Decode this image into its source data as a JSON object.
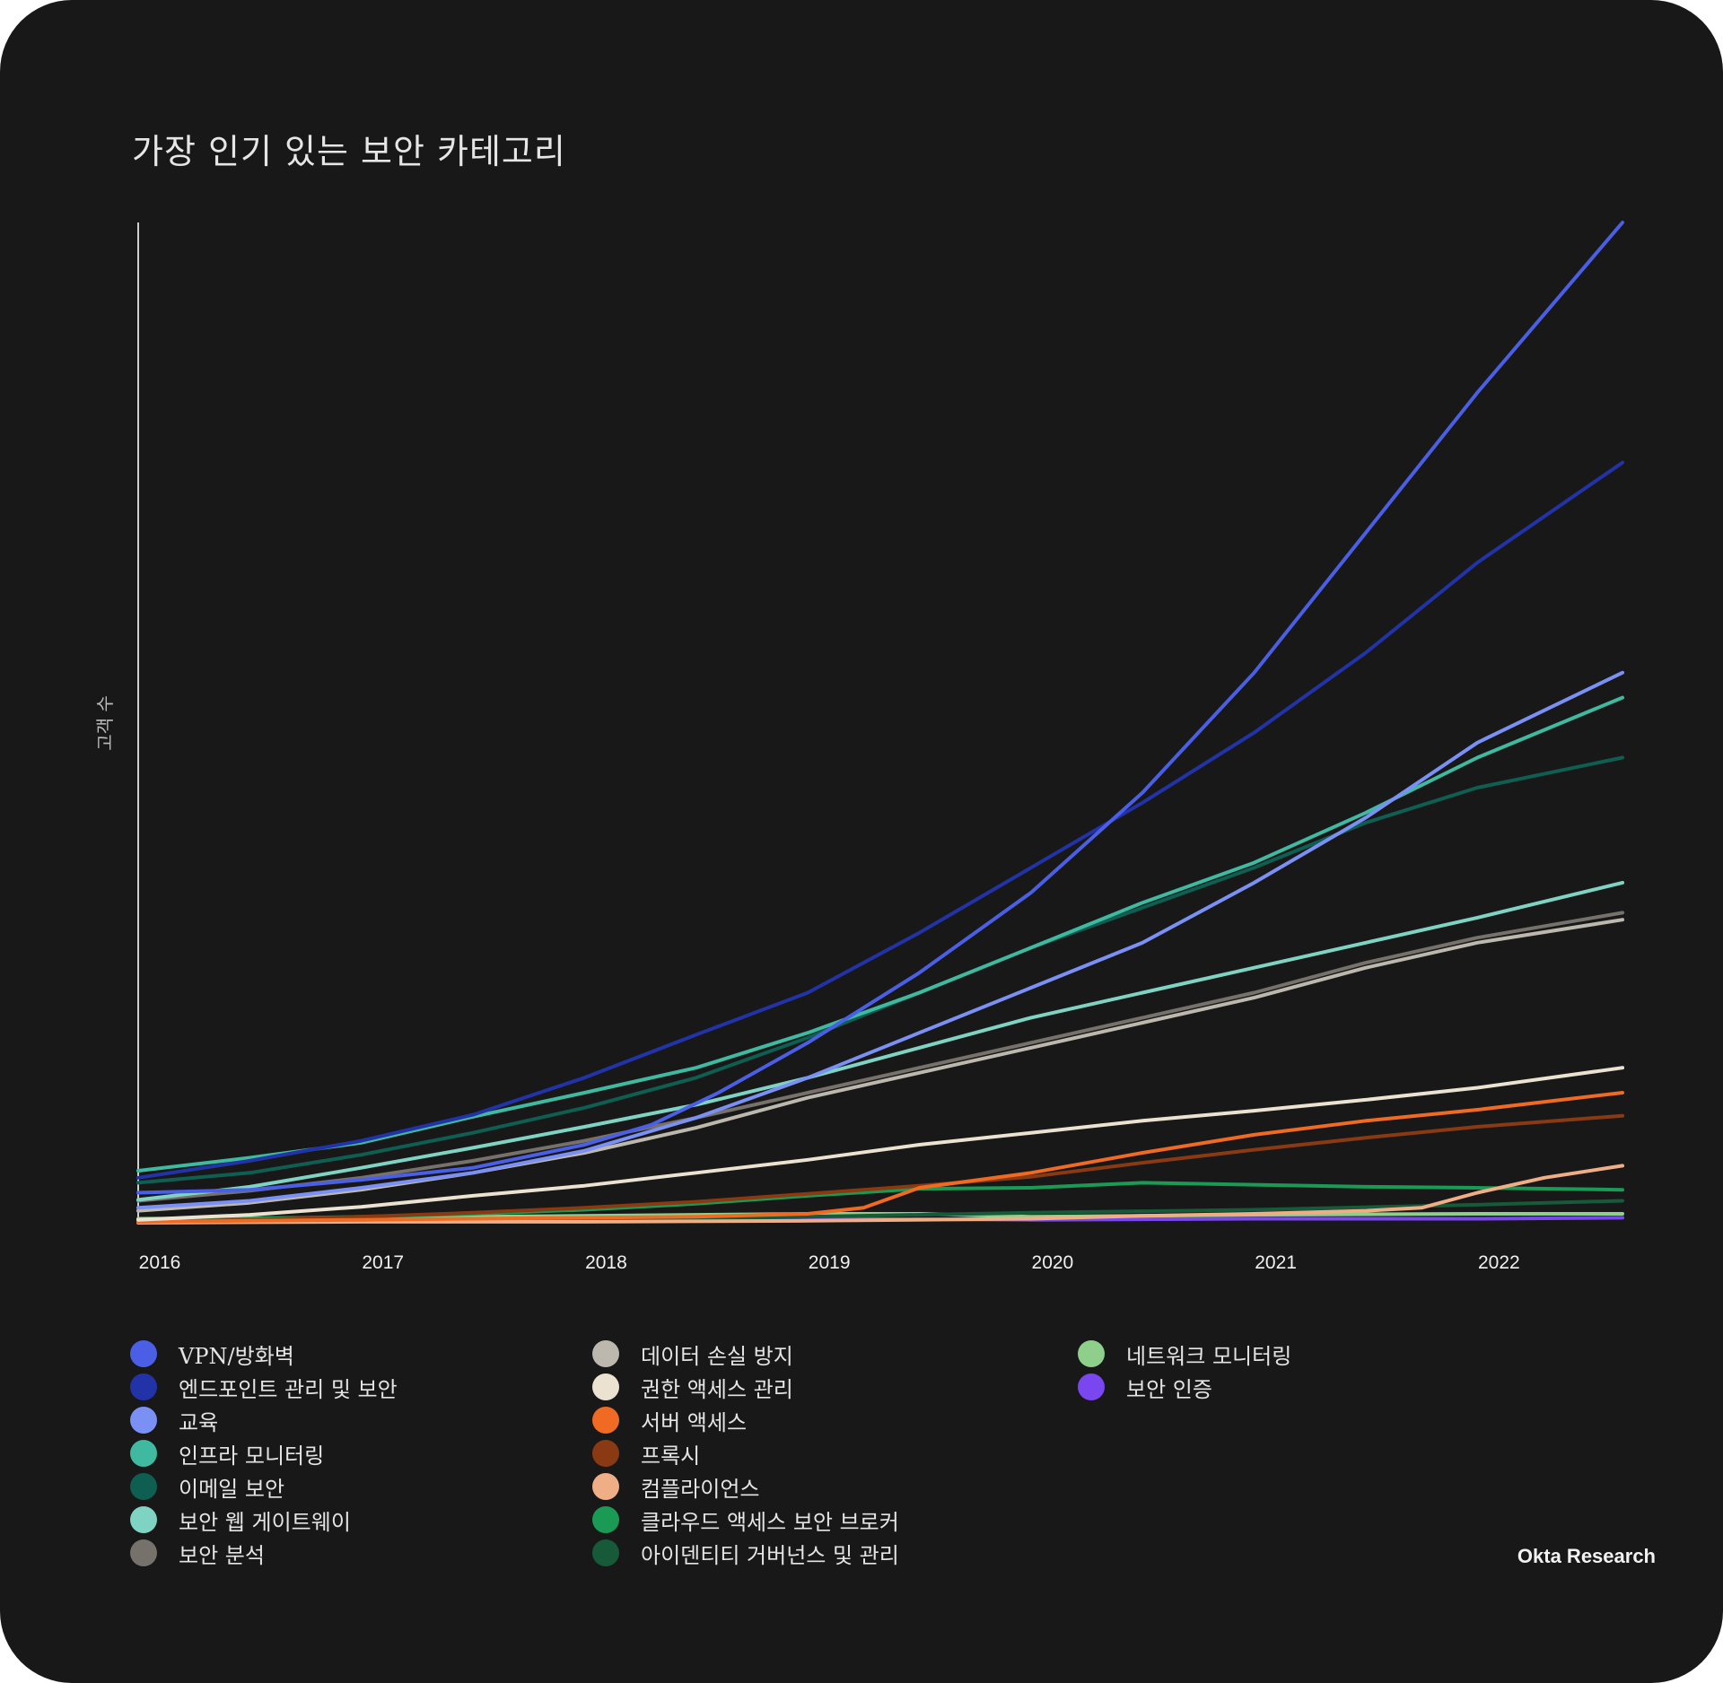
{
  "title": "가장 인기 있는 보안 카테고리",
  "source": "Okta Research",
  "chart_data": {
    "type": "line",
    "title": "가장 인기 있는 보안 카테고리",
    "xlabel": "",
    "ylabel": "고객 수",
    "x_ticks": [
      "2016",
      "2017",
      "2018",
      "2019",
      "2020",
      "2021",
      "2022"
    ],
    "xlim": [
      2016,
      2022.65
    ],
    "ylim": [
      0,
      100
    ],
    "grid": false,
    "legend_position": "bottom",
    "series": [
      {
        "name": "VPN/방화벽",
        "color": "#4a5fe6",
        "width": 4,
        "points": [
          [
            2016,
            3
          ],
          [
            2016.5,
            3.3
          ],
          [
            2017,
            4.3
          ],
          [
            2017.5,
            5.5
          ],
          [
            2018,
            7.8
          ],
          [
            2018.3,
            9.8
          ],
          [
            2018.6,
            13
          ],
          [
            2019,
            18
          ],
          [
            2019.5,
            25
          ],
          [
            2020,
            33
          ],
          [
            2020.5,
            43
          ],
          [
            2021,
            55
          ],
          [
            2021.5,
            69
          ],
          [
            2022,
            83
          ],
          [
            2022.65,
            100
          ]
        ]
      },
      {
        "name": "엔드포인트 관리 및 보안",
        "color": "#2233a8",
        "width": 4,
        "points": [
          [
            2016,
            4.5
          ],
          [
            2016.5,
            6.2
          ],
          [
            2017,
            8.2
          ],
          [
            2017.5,
            10.8
          ],
          [
            2018,
            14.5
          ],
          [
            2018.5,
            18.8
          ],
          [
            2019,
            23
          ],
          [
            2019.5,
            29
          ],
          [
            2020,
            35.5
          ],
          [
            2020.5,
            42
          ],
          [
            2021,
            49
          ],
          [
            2021.5,
            57
          ],
          [
            2022,
            66
          ],
          [
            2022.65,
            76
          ]
        ]
      },
      {
        "name": "교육",
        "color": "#7b90f5",
        "width": 4,
        "points": [
          [
            2016,
            1.5
          ],
          [
            2016.5,
            2.2
          ],
          [
            2017,
            3.5
          ],
          [
            2017.5,
            5
          ],
          [
            2018,
            7.2
          ],
          [
            2018.5,
            10.5
          ],
          [
            2019,
            14.5
          ],
          [
            2019.5,
            19
          ],
          [
            2020,
            23.5
          ],
          [
            2020.5,
            28
          ],
          [
            2021,
            34
          ],
          [
            2021.5,
            40.5
          ],
          [
            2022,
            48
          ],
          [
            2022.65,
            55
          ]
        ]
      },
      {
        "name": "인프라 모니터링",
        "color": "#3fb9a0",
        "width": 4,
        "points": [
          [
            2016,
            5.2
          ],
          [
            2016.5,
            6.5
          ],
          [
            2017,
            8
          ],
          [
            2017.5,
            10.6
          ],
          [
            2018,
            13
          ],
          [
            2018.5,
            15.5
          ],
          [
            2019,
            19
          ],
          [
            2019.5,
            23
          ],
          [
            2020,
            27.5
          ],
          [
            2020.5,
            32
          ],
          [
            2021,
            36
          ],
          [
            2021.5,
            41
          ],
          [
            2022,
            46.5
          ],
          [
            2022.65,
            52.5
          ]
        ]
      },
      {
        "name": "이메일 보안",
        "color": "#0e5e52",
        "width": 4,
        "points": [
          [
            2016,
            4
          ],
          [
            2016.5,
            5
          ],
          [
            2017,
            6.8
          ],
          [
            2017.5,
            9
          ],
          [
            2018,
            11.5
          ],
          [
            2018.5,
            14.5
          ],
          [
            2019,
            18.5
          ],
          [
            2019.5,
            23
          ],
          [
            2020,
            27.5
          ],
          [
            2020.5,
            31.5
          ],
          [
            2021,
            35.5
          ],
          [
            2021.5,
            40
          ],
          [
            2022,
            43.5
          ],
          [
            2022.65,
            46.5
          ]
        ]
      },
      {
        "name": "보안 웹 게이트웨이",
        "color": "#7fd3c3",
        "width": 4,
        "points": [
          [
            2016,
            2.3
          ],
          [
            2016.5,
            3.6
          ],
          [
            2017,
            5.5
          ],
          [
            2017.5,
            7.5
          ],
          [
            2018,
            9.6
          ],
          [
            2018.5,
            11.8
          ],
          [
            2019,
            14.5
          ],
          [
            2019.5,
            17.5
          ],
          [
            2020,
            20.5
          ],
          [
            2020.5,
            23
          ],
          [
            2021,
            25.5
          ],
          [
            2021.5,
            28
          ],
          [
            2022,
            30.5
          ],
          [
            2022.65,
            34
          ]
        ]
      },
      {
        "name": "보안 분석",
        "color": "#76716a",
        "width": 4,
        "points": [
          [
            2016,
            2.2
          ],
          [
            2016.5,
            3.2
          ],
          [
            2017,
            4.5
          ],
          [
            2017.5,
            6.2
          ],
          [
            2018,
            8.2
          ],
          [
            2018.5,
            10.5
          ],
          [
            2019,
            13
          ],
          [
            2019.5,
            15.5
          ],
          [
            2020,
            18
          ],
          [
            2020.5,
            20.5
          ],
          [
            2021,
            23
          ],
          [
            2021.5,
            26
          ],
          [
            2022,
            28.5
          ],
          [
            2022.65,
            31
          ]
        ]
      },
      {
        "name": "데이터 손실 방지",
        "color": "#bdb8ae",
        "width": 4,
        "points": [
          [
            2016,
            1.2
          ],
          [
            2016.5,
            2
          ],
          [
            2017,
            3.3
          ],
          [
            2017.5,
            5
          ],
          [
            2018,
            7
          ],
          [
            2018.5,
            9.5
          ],
          [
            2019,
            12.5
          ],
          [
            2019.5,
            15
          ],
          [
            2020,
            17.5
          ],
          [
            2020.5,
            20
          ],
          [
            2021,
            22.5
          ],
          [
            2021.5,
            25.5
          ],
          [
            2022,
            28
          ],
          [
            2022.65,
            30.3
          ]
        ]
      },
      {
        "name": "권한 액세스 관리",
        "color": "#ece2d2",
        "width": 4,
        "points": [
          [
            2016,
            0.3
          ],
          [
            2016.5,
            0.8
          ],
          [
            2017,
            1.6
          ],
          [
            2017.5,
            2.7
          ],
          [
            2018,
            3.7
          ],
          [
            2018.5,
            5
          ],
          [
            2019,
            6.3
          ],
          [
            2019.5,
            7.8
          ],
          [
            2020,
            9
          ],
          [
            2020.5,
            10.2
          ],
          [
            2021,
            11.2
          ],
          [
            2021.5,
            12.3
          ],
          [
            2022,
            13.5
          ],
          [
            2022.65,
            15.5
          ]
        ]
      },
      {
        "name": "서버 액세스",
        "color": "#ef6a22",
        "width": 4,
        "points": [
          [
            2016,
            0.1
          ],
          [
            2016.5,
            0.2
          ],
          [
            2017,
            0.3
          ],
          [
            2017.5,
            0.4
          ],
          [
            2018,
            0.5
          ],
          [
            2018.5,
            0.6
          ],
          [
            2019,
            0.9
          ],
          [
            2019.25,
            1.5
          ],
          [
            2019.5,
            3.5
          ],
          [
            2020,
            5
          ],
          [
            2020.5,
            7
          ],
          [
            2021,
            8.8
          ],
          [
            2021.5,
            10.2
          ],
          [
            2022,
            11.3
          ],
          [
            2022.65,
            13
          ]
        ]
      },
      {
        "name": "프록시",
        "color": "#8a3a12",
        "width": 4,
        "points": [
          [
            2016,
            0.1
          ],
          [
            2016.5,
            0.3
          ],
          [
            2017,
            0.6
          ],
          [
            2017.5,
            1
          ],
          [
            2018,
            1.5
          ],
          [
            2018.5,
            2.1
          ],
          [
            2019,
            2.9
          ],
          [
            2019.5,
            3.7
          ],
          [
            2020,
            4.6
          ],
          [
            2020.5,
            6
          ],
          [
            2021,
            7.3
          ],
          [
            2021.5,
            8.5
          ],
          [
            2022,
            9.6
          ],
          [
            2022.65,
            10.7
          ]
        ]
      },
      {
        "name": "컴플라이언스",
        "color": "#f0ae86",
        "width": 4,
        "points": [
          [
            2016,
            0
          ],
          [
            2017,
            0.1
          ],
          [
            2018,
            0.1
          ],
          [
            2019,
            0.2
          ],
          [
            2020,
            0.4
          ],
          [
            2020.5,
            0.7
          ],
          [
            2021,
            0.9
          ],
          [
            2021.5,
            1.2
          ],
          [
            2021.75,
            1.5
          ],
          [
            2022,
            3
          ],
          [
            2022.3,
            4.5
          ],
          [
            2022.65,
            5.7
          ]
        ]
      },
      {
        "name": "클라우드 액세스 보안 브로커",
        "color": "#1a9a55",
        "width": 4,
        "points": [
          [
            2016,
            0.2
          ],
          [
            2016.5,
            0.4
          ],
          [
            2017,
            0.6
          ],
          [
            2017.5,
            0.9
          ],
          [
            2018,
            1.3
          ],
          [
            2018.5,
            1.9
          ],
          [
            2019,
            2.7
          ],
          [
            2019.5,
            3.4
          ],
          [
            2020,
            3.5
          ],
          [
            2020.5,
            4
          ],
          [
            2021,
            3.8
          ],
          [
            2021.5,
            3.6
          ],
          [
            2022,
            3.5
          ],
          [
            2022.65,
            3.3
          ]
        ]
      },
      {
        "name": "아이덴티티 거버넌스 및 관리",
        "color": "#165a3a",
        "width": 4,
        "points": [
          [
            2016,
            0.1
          ],
          [
            2017,
            0.2
          ],
          [
            2018,
            0.3
          ],
          [
            2019,
            0.6
          ],
          [
            2020,
            1
          ],
          [
            2021,
            1.3
          ],
          [
            2022,
            1.8
          ],
          [
            2022.65,
            2.2
          ]
        ]
      },
      {
        "name": "네트워크 모니터링",
        "color": "#8fcf8c",
        "width": 4,
        "points": [
          [
            2016,
            0.4
          ],
          [
            2017,
            0.5
          ],
          [
            2018,
            0.7
          ],
          [
            2019,
            0.9
          ],
          [
            2019.5,
            0.9
          ],
          [
            2020,
            0.6
          ],
          [
            2021,
            0.8
          ],
          [
            2022,
            0.9
          ],
          [
            2022.65,
            0.9
          ]
        ]
      },
      {
        "name": "보안 인증",
        "color": "#7a46f0",
        "width": 4,
        "points": [
          [
            2016,
            0.2
          ],
          [
            2017,
            0.3
          ],
          [
            2018,
            0.4
          ],
          [
            2019,
            0.4
          ],
          [
            2020,
            0.3
          ],
          [
            2021,
            0.4
          ],
          [
            2022,
            0.4
          ],
          [
            2022.65,
            0.5
          ]
        ]
      }
    ]
  }
}
